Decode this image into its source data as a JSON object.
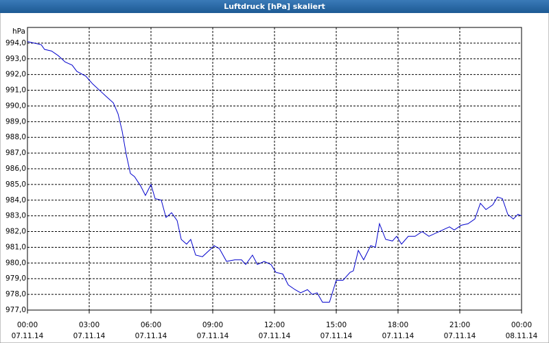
{
  "chart_data": {
    "type": "line",
    "title": "Luftdruck [hPa] skaliert",
    "y_unit": "hPa",
    "series": [
      {
        "name": "Luftdruck",
        "color": "#0000cc",
        "x": [
          0,
          0.33,
          0.67,
          0.83,
          1.17,
          1.5,
          1.83,
          2.17,
          2.4,
          2.83,
          3.17,
          3.5,
          3.83,
          4.17,
          4.4,
          4.6,
          4.8,
          5,
          5.2,
          5.5,
          5.73,
          6,
          6.2,
          6.5,
          6.73,
          7,
          7.27,
          7.47,
          7.73,
          7.93,
          8.17,
          8.5,
          8.83,
          9.07,
          9.33,
          9.67,
          10.07,
          10.4,
          10.6,
          10.93,
          11.17,
          11.5,
          11.83,
          12.07,
          12.4,
          12.67,
          13,
          13.27,
          13.6,
          13.83,
          14.07,
          14.33,
          14.67,
          15,
          15.33,
          15.67,
          15.83,
          16.07,
          16.33,
          16.67,
          16.9,
          17.1,
          17.4,
          17.73,
          17.93,
          18.17,
          18.5,
          18.83,
          19.17,
          19.5,
          20,
          20.5,
          20.73,
          21.07,
          21.4,
          21.73,
          22,
          22.27,
          22.6,
          22.83,
          23.07,
          23.33,
          23.6,
          23.83,
          24
        ],
        "values": [
          994.1,
          994.0,
          993.9,
          993.6,
          993.5,
          993.2,
          992.8,
          992.6,
          992.2,
          991.9,
          991.4,
          991.0,
          990.6,
          990.2,
          989.5,
          988.4,
          986.9,
          985.7,
          985.5,
          984.9,
          984.3,
          985.0,
          984.1,
          984.0,
          982.9,
          983.2,
          982.7,
          981.5,
          981.2,
          981.5,
          980.5,
          980.4,
          980.8,
          981.1,
          980.9,
          980.1,
          980.2,
          980.2,
          979.9,
          980.5,
          979.9,
          980.1,
          979.9,
          979.4,
          979.3,
          978.6,
          978.3,
          978.1,
          978.3,
          978.0,
          978.1,
          977.5,
          977.5,
          978.9,
          978.9,
          979.4,
          979.5,
          980.8,
          980.2,
          981.1,
          981.0,
          982.5,
          981.5,
          981.4,
          981.7,
          981.2,
          981.7,
          981.7,
          982.0,
          981.7,
          982.0,
          982.3,
          982.1,
          982.4,
          982.5,
          982.8,
          983.8,
          983.4,
          983.7,
          984.2,
          984.1,
          983.1,
          982.8,
          983.1,
          983.0
        ]
      }
    ],
    "xlim": [
      0,
      24
    ],
    "xticks": [
      {
        "value": 0,
        "label": "00:00"
      },
      {
        "value": 3,
        "label": "03:00"
      },
      {
        "value": 6,
        "label": "06:00"
      },
      {
        "value": 9,
        "label": "09:00"
      },
      {
        "value": 12,
        "label": "12:00"
      },
      {
        "value": 15,
        "label": "15:00"
      },
      {
        "value": 18,
        "label": "18:00"
      },
      {
        "value": 21,
        "label": "21:00"
      },
      {
        "value": 24,
        "label": "00:00"
      }
    ],
    "xtick_dates": [
      "07.11.14",
      "07.11.14",
      "07.11.14",
      "07.11.14",
      "07.11.14",
      "07.11.14",
      "07.11.14",
      "07.11.14",
      "08.11.14"
    ],
    "ylim": [
      977,
      995
    ],
    "yticks": [
      {
        "value": 977,
        "label": "977,0"
      },
      {
        "value": 978,
        "label": "978,0"
      },
      {
        "value": 979,
        "label": "979,0"
      },
      {
        "value": 980,
        "label": "980,0"
      },
      {
        "value": 981,
        "label": "981,0"
      },
      {
        "value": 982,
        "label": "982,0"
      },
      {
        "value": 983,
        "label": "983,0"
      },
      {
        "value": 984,
        "label": "984,0"
      },
      {
        "value": 985,
        "label": "985,0"
      },
      {
        "value": 986,
        "label": "986,0"
      },
      {
        "value": 987,
        "label": "987,0"
      },
      {
        "value": 988,
        "label": "988,0"
      },
      {
        "value": 989,
        "label": "989,0"
      },
      {
        "value": 990,
        "label": "990,0"
      },
      {
        "value": 991,
        "label": "991,0"
      },
      {
        "value": 992,
        "label": "992,0"
      },
      {
        "value": 993,
        "label": "993,0"
      },
      {
        "value": 994,
        "label": "994,0"
      }
    ],
    "grid": true
  }
}
